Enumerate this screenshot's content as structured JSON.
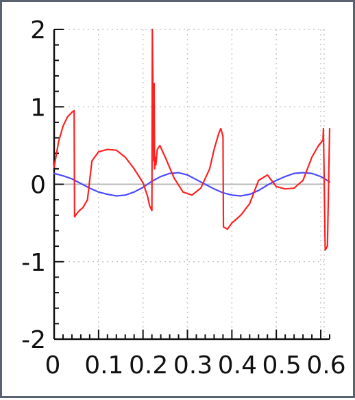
{
  "chart_data": {
    "type": "line",
    "title": "",
    "xlabel": "",
    "ylabel": "",
    "xlim": [
      0,
      0.62
    ],
    "ylim": [
      -2,
      2
    ],
    "grid": true,
    "x_ticks": [
      {
        "value": 0,
        "label": "0"
      },
      {
        "value": 0.1,
        "label": "0.1"
      },
      {
        "value": 0.2,
        "label": "0.2"
      },
      {
        "value": 0.3,
        "label": "0.3"
      },
      {
        "value": 0.4,
        "label": "0.4"
      },
      {
        "value": 0.5,
        "label": "0.5"
      },
      {
        "value": 0.6,
        "label": "0.6"
      }
    ],
    "y_ticks": [
      {
        "value": 2,
        "label": "2"
      },
      {
        "value": 1,
        "label": "1"
      },
      {
        "value": 0,
        "label": "0"
      },
      {
        "value": -1,
        "label": "-1"
      },
      {
        "value": -2,
        "label": "-2"
      }
    ],
    "colors": {
      "series_red": "#ff2020",
      "series_blue": "#4a4aff",
      "grid": "#c8c8c8",
      "zero_line": "#b8b8b8",
      "axis": "#111111"
    },
    "series": [
      {
        "color": "#4a4aff",
        "x": [
          0,
          0.02,
          0.04,
          0.06,
          0.08,
          0.1,
          0.12,
          0.14,
          0.16,
          0.18,
          0.2,
          0.22,
          0.24,
          0.26,
          0.28,
          0.3,
          0.32,
          0.34,
          0.36,
          0.38,
          0.4,
          0.42,
          0.44,
          0.46,
          0.48,
          0.5,
          0.52,
          0.54,
          0.56,
          0.58,
          0.6,
          0.62
        ],
        "y": [
          0.14,
          0.11,
          0.07,
          0.01,
          -0.05,
          -0.1,
          -0.13,
          -0.15,
          -0.14,
          -0.1,
          -0.04,
          0.04,
          0.1,
          0.14,
          0.15,
          0.12,
          0.06,
          0.0,
          -0.06,
          -0.11,
          -0.14,
          -0.15,
          -0.13,
          -0.08,
          -0.01,
          0.05,
          0.1,
          0.14,
          0.15,
          0.14,
          0.1,
          0.03
        ]
      },
      {
        "color": "#ff2020",
        "x": [
          0,
          0.01,
          0.02,
          0.03,
          0.04,
          0.045,
          0.046,
          0.055,
          0.065,
          0.075,
          0.085,
          0.1,
          0.12,
          0.14,
          0.16,
          0.18,
          0.2,
          0.21,
          0.215,
          0.22,
          0.221,
          0.224,
          0.225,
          0.226,
          0.228,
          0.229,
          0.232,
          0.238,
          0.25,
          0.27,
          0.29,
          0.31,
          0.33,
          0.35,
          0.36,
          0.37,
          0.375,
          0.38,
          0.381,
          0.39,
          0.4,
          0.42,
          0.44,
          0.46,
          0.48,
          0.5,
          0.52,
          0.54,
          0.56,
          0.58,
          0.595,
          0.605,
          0.606,
          0.61,
          0.615,
          0.62
        ],
        "y": [
          0.22,
          0.55,
          0.75,
          0.87,
          0.93,
          0.95,
          -0.42,
          -0.35,
          -0.3,
          -0.2,
          0.3,
          0.42,
          0.45,
          0.44,
          0.35,
          0.2,
          0.02,
          -0.15,
          -0.28,
          -0.34,
          2.0,
          0.3,
          1.3,
          0.2,
          0.35,
          0.25,
          0.45,
          0.5,
          0.35,
          0.08,
          -0.1,
          -0.14,
          -0.05,
          0.2,
          0.45,
          0.65,
          0.72,
          0.62,
          -0.55,
          -0.58,
          -0.5,
          -0.4,
          -0.25,
          0.05,
          0.12,
          -0.03,
          -0.06,
          -0.05,
          0.05,
          0.35,
          0.5,
          0.57,
          0.72,
          -0.85,
          -0.8,
          0.72
        ]
      }
    ]
  }
}
